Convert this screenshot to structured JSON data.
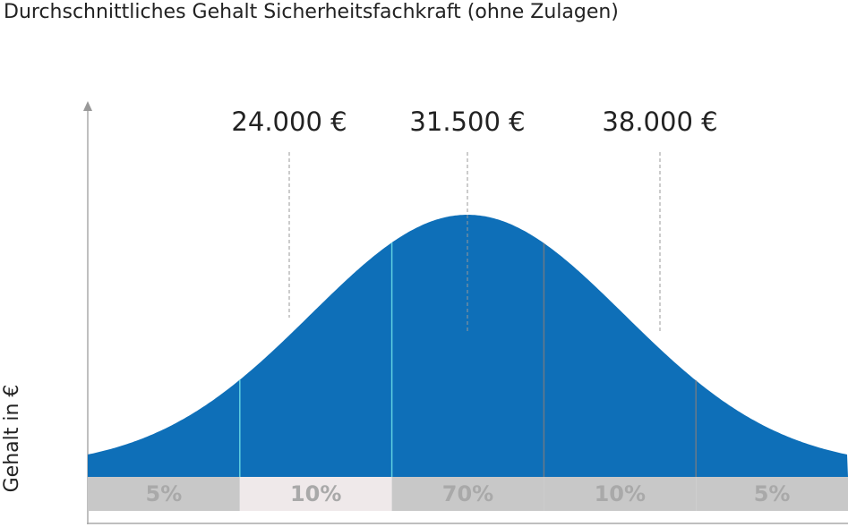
{
  "chart_data": {
    "type": "distribution",
    "title": "Durchschnittliches Gehalt Sicherheitsfachkraft (ohne Zulagen)",
    "y_label": "Gehalt in €",
    "annotations": [
      "24.000 €",
      "31.500 €",
      "38.000 €"
    ],
    "values": [
      5,
      10,
      70,
      10,
      5
    ],
    "value_labels": [
      "5%",
      "10%",
      "70%",
      "10%",
      "5%"
    ],
    "band_colors": [
      "#c8c8c8",
      "#efe9ea",
      "#c8c8c8",
      "#c8c8c8",
      "#c8c8c8"
    ],
    "color": "#0e6fb8"
  }
}
